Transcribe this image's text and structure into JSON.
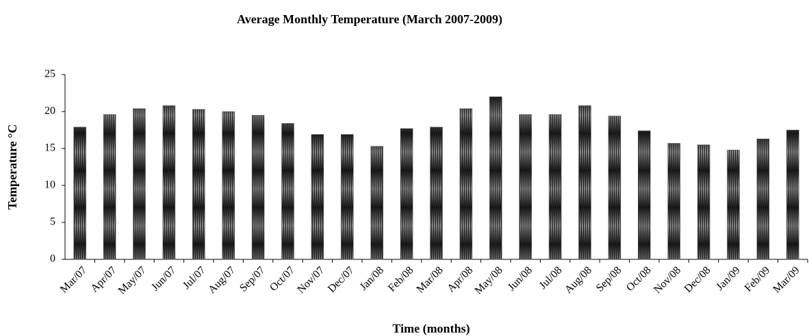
{
  "chart_data": {
    "type": "bar",
    "title": "Average Monthly Temperature (March 2007-2009)",
    "x_label": "Time (months)",
    "y_label": "Temperature °C",
    "categories": [
      "Mar/07",
      "Apr/07",
      "May/07",
      "Jun/07",
      "Jul/07",
      "Aug/07",
      "Sep/07",
      "Oct/07",
      "Nov/07",
      "Dec/07",
      "Jan/08",
      "Feb/08",
      "Mar/08",
      "Apr/08",
      "May/08",
      "Jun/08",
      "Jul/08",
      "Aug/08",
      "Sep/08",
      "Oct/08",
      "Nov/08",
      "Dec/08",
      "Jan/09",
      "Feb/09",
      "Mar/09"
    ],
    "values": [
      17.9,
      19.6,
      20.4,
      20.8,
      20.3,
      20.0,
      19.5,
      18.4,
      16.9,
      16.9,
      15.3,
      17.7,
      17.9,
      20.4,
      22.0,
      19.6,
      19.6,
      20.8,
      19.4,
      17.4,
      15.7,
      15.5,
      14.8,
      16.3,
      17.5
    ],
    "color": "#555555",
    "ylim": [
      0,
      25
    ],
    "yticks": [
      0,
      5,
      10,
      15,
      20,
      25
    ],
    "grid": false
  }
}
